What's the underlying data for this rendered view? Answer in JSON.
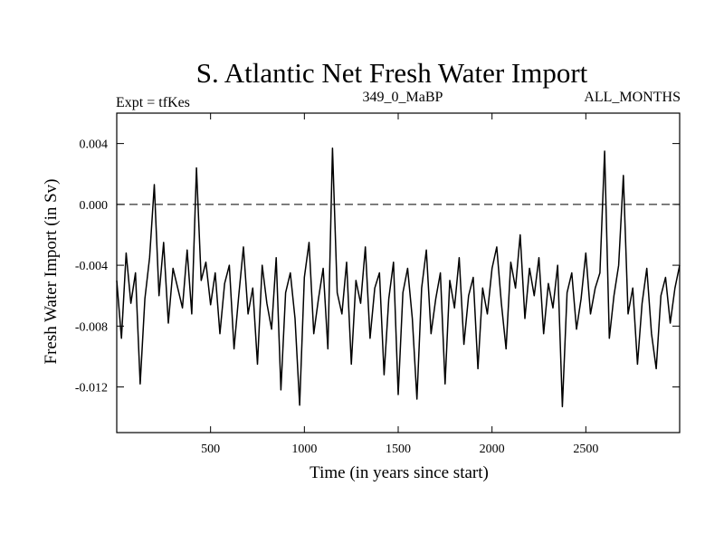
{
  "chart_data": {
    "type": "line",
    "title": "S. Atlantic Net Fresh Water Import",
    "subtitle_left": "Expt = tfKes",
    "subtitle_center": "349_0_MaBP",
    "subtitle_right": "ALL_MONTHS",
    "xlabel": "Time (in years since start)",
    "ylabel": "Fresh Water Import (in Sv)",
    "xlim": [
      0,
      3000
    ],
    "ylim": [
      -0.015,
      0.006
    ],
    "x_ticks": [
      500,
      1000,
      1500,
      2000,
      2500
    ],
    "x_tick_labels": [
      "500",
      "1000",
      "1500",
      "2000",
      "2500"
    ],
    "y_ticks": [
      0.004,
      0.0,
      -0.004,
      -0.008,
      -0.012
    ],
    "y_tick_labels": [
      "0.004",
      "0.000",
      "-0.004",
      "-0.008",
      "-0.012"
    ],
    "reference_line": {
      "y": 0.0,
      "style": "dashed"
    },
    "grid": false,
    "series": [
      {
        "color": "#000000",
        "x": [
          0,
          25,
          50,
          75,
          100,
          125,
          150,
          175,
          200,
          225,
          250,
          275,
          300,
          325,
          350,
          375,
          400,
          425,
          450,
          475,
          500,
          525,
          550,
          575,
          600,
          625,
          650,
          675,
          700,
          725,
          750,
          775,
          800,
          825,
          850,
          875,
          900,
          925,
          950,
          975,
          1000,
          1025,
          1050,
          1075,
          1100,
          1125,
          1150,
          1175,
          1200,
          1225,
          1250,
          1275,
          1300,
          1325,
          1350,
          1375,
          1400,
          1425,
          1450,
          1475,
          1500,
          1525,
          1550,
          1575,
          1600,
          1625,
          1650,
          1675,
          1700,
          1725,
          1750,
          1775,
          1800,
          1825,
          1850,
          1875,
          1900,
          1925,
          1950,
          1975,
          2000,
          2025,
          2050,
          2075,
          2100,
          2125,
          2150,
          2175,
          2200,
          2225,
          2250,
          2275,
          2300,
          2325,
          2350,
          2375,
          2400,
          2425,
          2450,
          2475,
          2500,
          2525,
          2550,
          2575,
          2600,
          2625,
          2650,
          2675,
          2700,
          2725,
          2750,
          2775,
          2800,
          2825,
          2850,
          2875,
          2900,
          2925,
          2950,
          2975,
          3000
        ],
        "y": [
          -0.005,
          -0.0088,
          -0.0032,
          -0.0065,
          -0.0045,
          -0.0118,
          -0.0062,
          -0.0035,
          0.0013,
          -0.006,
          -0.0025,
          -0.0078,
          -0.0042,
          -0.0055,
          -0.0068,
          -0.003,
          -0.0072,
          0.0024,
          -0.005,
          -0.0038,
          -0.0066,
          -0.0045,
          -0.0085,
          -0.0052,
          -0.004,
          -0.0095,
          -0.006,
          -0.0028,
          -0.0072,
          -0.0055,
          -0.0105,
          -0.004,
          -0.0065,
          -0.0082,
          -0.0035,
          -0.0122,
          -0.0058,
          -0.0045,
          -0.0075,
          -0.0132,
          -0.0048,
          -0.0025,
          -0.0085,
          -0.0062,
          -0.0042,
          -0.0095,
          0.0037,
          -0.0058,
          -0.0072,
          -0.0038,
          -0.0105,
          -0.005,
          -0.0065,
          -0.0028,
          -0.0088,
          -0.0055,
          -0.0045,
          -0.0112,
          -0.0062,
          -0.0038,
          -0.0125,
          -0.0058,
          -0.0042,
          -0.0075,
          -0.0128,
          -0.0055,
          -0.003,
          -0.0085,
          -0.0062,
          -0.0045,
          -0.0118,
          -0.005,
          -0.0068,
          -0.0035,
          -0.0092,
          -0.006,
          -0.0048,
          -0.0108,
          -0.0055,
          -0.0072,
          -0.0042,
          -0.0028,
          -0.0065,
          -0.0095,
          -0.0038,
          -0.0055,
          -0.002,
          -0.0075,
          -0.0042,
          -0.006,
          -0.0035,
          -0.0085,
          -0.0052,
          -0.0068,
          -0.004,
          -0.0133,
          -0.0058,
          -0.0045,
          -0.0082,
          -0.0062,
          -0.0032,
          -0.0072,
          -0.0055,
          -0.0045,
          0.0035,
          -0.0088,
          -0.006,
          -0.004,
          0.0019,
          -0.0072,
          -0.0055,
          -0.0105,
          -0.0065,
          -0.0042,
          -0.0085,
          -0.0108,
          -0.006,
          -0.0048,
          -0.0078,
          -0.0055,
          -0.004
        ]
      }
    ]
  }
}
